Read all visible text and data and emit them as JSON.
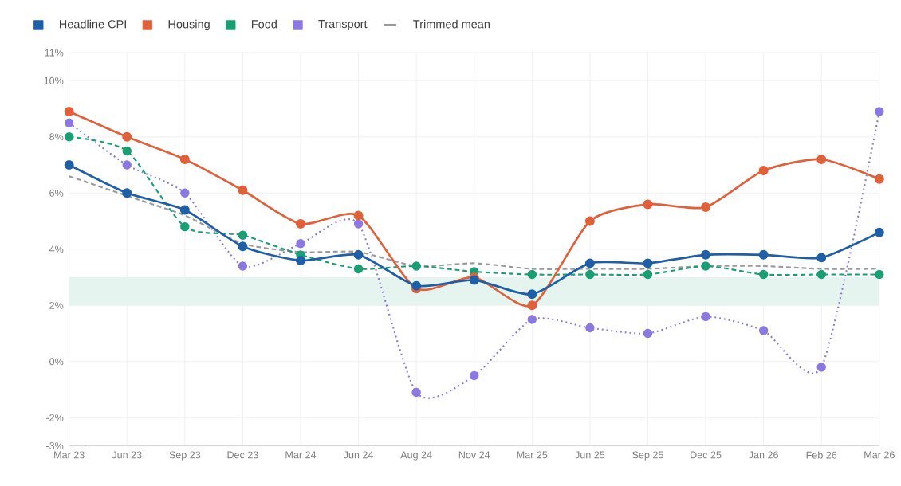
{
  "chart_data": {
    "type": "line",
    "categories": [
      "Mar 23",
      "Jun 23",
      "Sep 23",
      "Dec 23",
      "Mar 24",
      "Jun 24",
      "Aug 24",
      "Nov 24",
      "Mar 25",
      "Jun 25",
      "Sep 25",
      "Dec 25",
      "Jan 26",
      "Feb 26",
      "Mar 26"
    ],
    "series": [
      {
        "name": "Headline CPI",
        "color": "#1f5fa8",
        "marker": "circle",
        "line_style": "solid",
        "values": [
          7.0,
          6.0,
          5.4,
          4.1,
          3.6,
          3.8,
          2.7,
          2.9,
          2.4,
          3.5,
          3.5,
          3.8,
          3.8,
          3.7,
          4.6
        ]
      },
      {
        "name": "Housing",
        "color": "#e0603a",
        "marker": "circle",
        "line_style": "solid",
        "values": [
          8.9,
          8.0,
          7.2,
          6.1,
          4.9,
          5.2,
          2.6,
          3.0,
          2.0,
          5.0,
          5.6,
          5.5,
          6.8,
          7.2,
          6.5
        ]
      },
      {
        "name": "Food",
        "color": "#1a9e74",
        "marker": "circle",
        "line_style": "dashed",
        "values": [
          8.0,
          7.5,
          4.8,
          4.5,
          3.8,
          3.3,
          3.4,
          3.2,
          3.1,
          3.1,
          3.1,
          3.4,
          3.1,
          3.1,
          3.1
        ]
      },
      {
        "name": "Transport",
        "color": "#8b78e0",
        "marker": "circle",
        "line_style": "dotted",
        "values": [
          8.5,
          7.0,
          6.0,
          3.4,
          4.2,
          4.9,
          -1.1,
          -0.5,
          1.5,
          1.2,
          1.0,
          1.6,
          1.1,
          -0.2,
          8.9
        ]
      },
      {
        "name": "Trimmed mean",
        "color": "#9a9a9a",
        "marker": "none",
        "line_style": "dashed",
        "values": [
          6.6,
          5.9,
          5.2,
          4.2,
          3.9,
          3.9,
          3.4,
          3.5,
          3.3,
          3.3,
          3.3,
          3.4,
          3.4,
          3.3,
          3.3
        ]
      }
    ],
    "ylim": [
      -3,
      11
    ],
    "yticks": [
      {
        "value": -3,
        "label": "-3%"
      },
      {
        "value": -2,
        "label": "-2%"
      },
      {
        "value": 0,
        "label": "0%"
      },
      {
        "value": 2,
        "label": "2%"
      },
      {
        "value": 4,
        "label": "4%"
      },
      {
        "value": 6,
        "label": "6%"
      },
      {
        "value": 8,
        "label": "8%"
      },
      {
        "value": 10,
        "label": "10%"
      },
      {
        "value": 11,
        "label": "11%"
      }
    ],
    "bands": [
      {
        "axis": "y",
        "from": 2,
        "to": 3,
        "color": "#e6f4ef"
      }
    ],
    "grid": true,
    "legend": "top left"
  }
}
